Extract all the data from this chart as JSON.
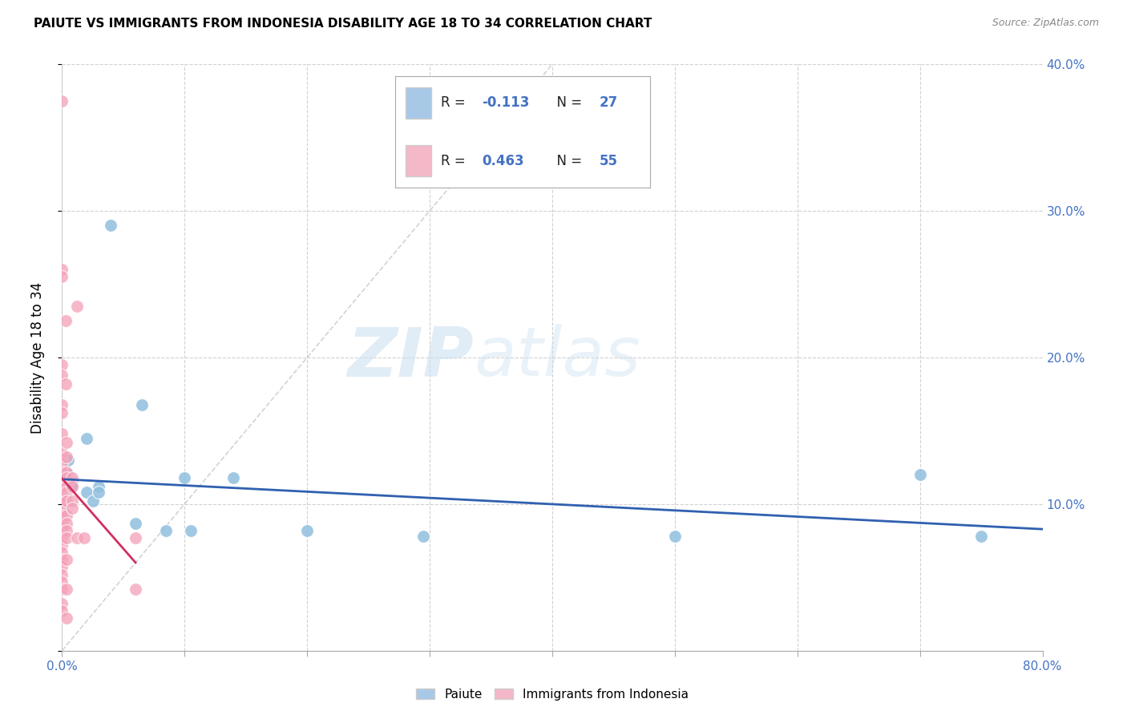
{
  "title": "PAIUTE VS IMMIGRANTS FROM INDONESIA DISABILITY AGE 18 TO 34 CORRELATION CHART",
  "source": "Source: ZipAtlas.com",
  "ylabel": "Disability Age 18 to 34",
  "xlim": [
    0.0,
    0.8
  ],
  "ylim": [
    0.0,
    0.4
  ],
  "xticks": [
    0.0,
    0.1,
    0.2,
    0.3,
    0.4,
    0.5,
    0.6,
    0.7,
    0.8
  ],
  "xticklabels_bottom": [
    "0.0%",
    "",
    "",
    "",
    "",
    "",
    "",
    "",
    "80.0%"
  ],
  "yticks": [
    0.0,
    0.1,
    0.2,
    0.3,
    0.4
  ],
  "yticklabels_right": [
    "",
    "10.0%",
    "20.0%",
    "30.0%",
    "40.0%"
  ],
  "paiute_color": "#90bfdf",
  "indonesia_color": "#f4a0b8",
  "paiute_line_color": "#3060b0",
  "indonesia_line_color": "#d03060",
  "diag_line_color": "#c8c8c8",
  "background_color": "#ffffff",
  "grid_color": "#cccccc",
  "watermark_zip": "ZIP",
  "watermark_atlas": "atlas",
  "paiute_R": -0.113,
  "paiute_N": 27,
  "indonesia_R": 0.463,
  "indonesia_N": 55,
  "paiute_points": [
    [
      0.0,
      0.12
    ],
    [
      0.0,
      0.105
    ],
    [
      0.0,
      0.1
    ],
    [
      0.0,
      0.095
    ],
    [
      0.0,
      0.088
    ],
    [
      0.0,
      0.082
    ],
    [
      0.005,
      0.13
    ],
    [
      0.005,
      0.12
    ],
    [
      0.008,
      0.115
    ],
    [
      0.008,
      0.112
    ],
    [
      0.02,
      0.145
    ],
    [
      0.02,
      0.108
    ],
    [
      0.025,
      0.102
    ],
    [
      0.03,
      0.112
    ],
    [
      0.03,
      0.108
    ],
    [
      0.04,
      0.29
    ],
    [
      0.06,
      0.087
    ],
    [
      0.065,
      0.168
    ],
    [
      0.085,
      0.082
    ],
    [
      0.1,
      0.118
    ],
    [
      0.105,
      0.082
    ],
    [
      0.14,
      0.118
    ],
    [
      0.2,
      0.082
    ],
    [
      0.295,
      0.078
    ],
    [
      0.5,
      0.078
    ],
    [
      0.7,
      0.12
    ],
    [
      0.75,
      0.078
    ]
  ],
  "indonesia_points": [
    [
      0.0,
      0.375
    ],
    [
      0.0,
      0.26
    ],
    [
      0.0,
      0.255
    ],
    [
      0.0,
      0.195
    ],
    [
      0.0,
      0.188
    ],
    [
      0.0,
      0.168
    ],
    [
      0.0,
      0.162
    ],
    [
      0.0,
      0.148
    ],
    [
      0.0,
      0.135
    ],
    [
      0.0,
      0.128
    ],
    [
      0.0,
      0.122
    ],
    [
      0.0,
      0.118
    ],
    [
      0.0,
      0.112
    ],
    [
      0.0,
      0.108
    ],
    [
      0.0,
      0.102
    ],
    [
      0.0,
      0.102
    ],
    [
      0.0,
      0.097
    ],
    [
      0.0,
      0.092
    ],
    [
      0.0,
      0.087
    ],
    [
      0.0,
      0.082
    ],
    [
      0.0,
      0.077
    ],
    [
      0.0,
      0.072
    ],
    [
      0.0,
      0.067
    ],
    [
      0.0,
      0.062
    ],
    [
      0.0,
      0.057
    ],
    [
      0.0,
      0.052
    ],
    [
      0.0,
      0.047
    ],
    [
      0.0,
      0.042
    ],
    [
      0.0,
      0.032
    ],
    [
      0.0,
      0.027
    ],
    [
      0.003,
      0.225
    ],
    [
      0.003,
      0.182
    ],
    [
      0.004,
      0.142
    ],
    [
      0.004,
      0.132
    ],
    [
      0.004,
      0.122
    ],
    [
      0.004,
      0.118
    ],
    [
      0.004,
      0.112
    ],
    [
      0.004,
      0.108
    ],
    [
      0.004,
      0.102
    ],
    [
      0.004,
      0.092
    ],
    [
      0.004,
      0.087
    ],
    [
      0.004,
      0.082
    ],
    [
      0.004,
      0.077
    ],
    [
      0.004,
      0.062
    ],
    [
      0.004,
      0.042
    ],
    [
      0.004,
      0.022
    ],
    [
      0.008,
      0.118
    ],
    [
      0.008,
      0.112
    ],
    [
      0.008,
      0.102
    ],
    [
      0.008,
      0.097
    ],
    [
      0.012,
      0.235
    ],
    [
      0.012,
      0.077
    ],
    [
      0.018,
      0.077
    ],
    [
      0.06,
      0.077
    ],
    [
      0.06,
      0.042
    ]
  ]
}
